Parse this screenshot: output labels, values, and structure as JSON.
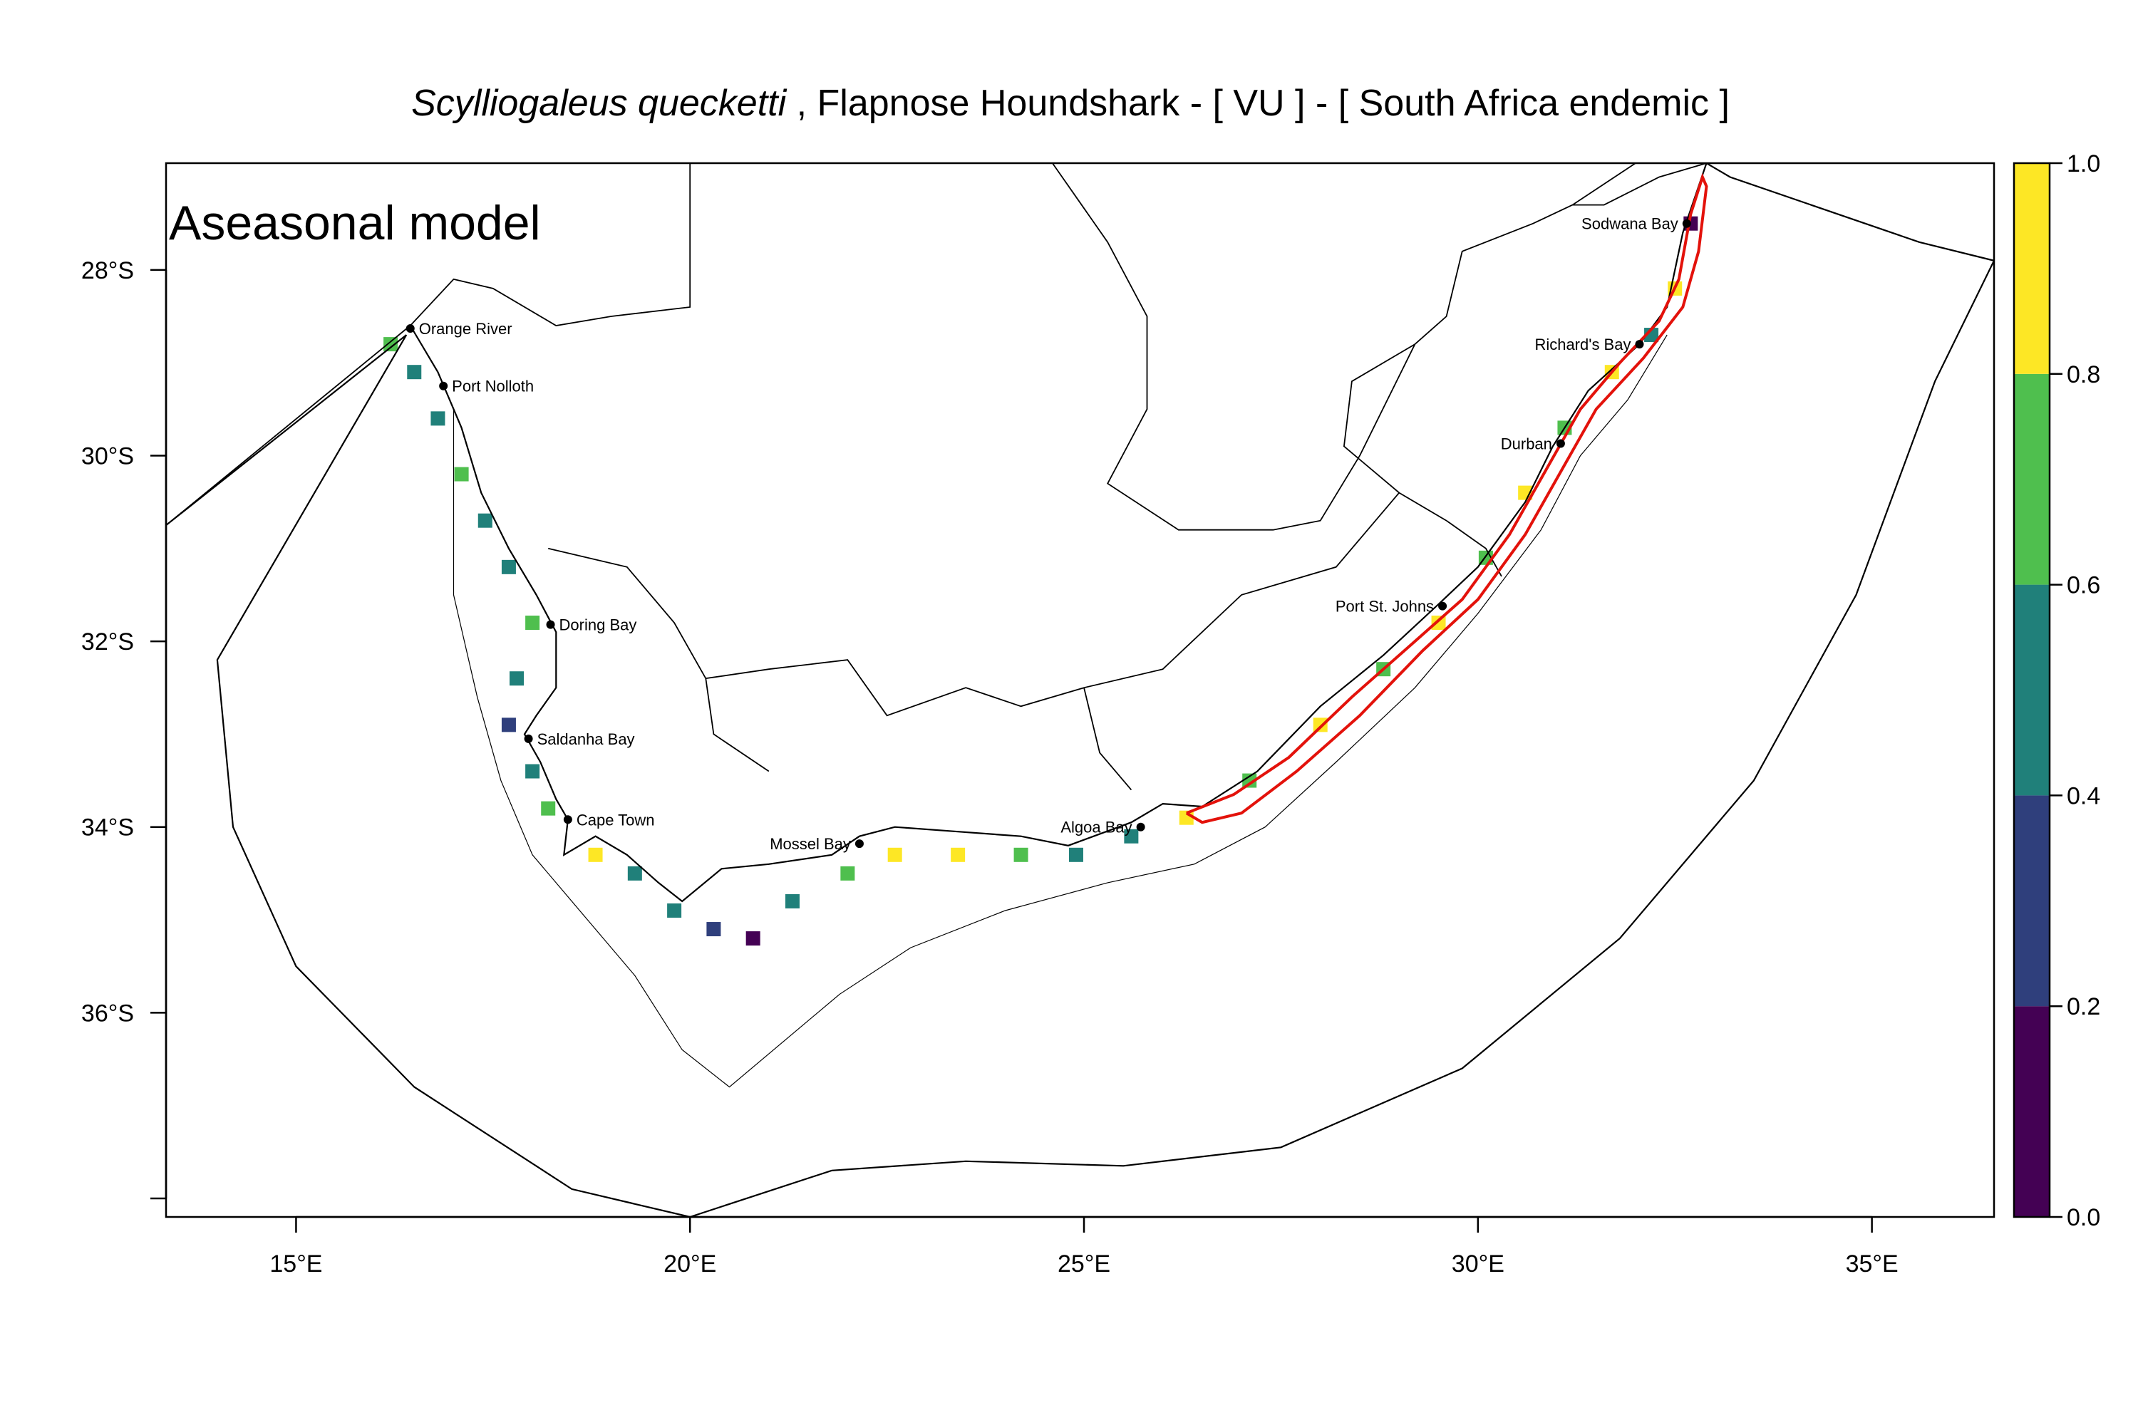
{
  "title": {
    "species": "Scylliogaleus quecketti",
    "rest": " , Flapnose Houndshark  - [ VU ] - [ South Africa endemic ]"
  },
  "model_label": "Aseasonal model",
  "colors": {
    "v0": "#440154",
    "v1": "#2f3f7c",
    "v2": "#20807a",
    "v3": "#4fbf4e",
    "v4": "#fde725",
    "range_outline": "#e3120b",
    "line": "#000000"
  },
  "chart_data": {
    "type": "heatmap",
    "xlabel": "",
    "ylabel": "",
    "x_range": [
      13.35,
      36.55
    ],
    "y_range": [
      -38.2,
      -26.85
    ],
    "x_ticks": [
      15,
      20,
      25,
      30,
      35
    ],
    "x_tick_labels": [
      "15°E",
      "20°E",
      "25°E",
      "30°E",
      "35°E"
    ],
    "y_ticks": [
      -28,
      -30,
      -32,
      -34,
      -36,
      -38
    ],
    "y_tick_labels": [
      "28°S",
      "30°S",
      "32°S",
      "34°S",
      "36°S",
      ""
    ],
    "colorbar": {
      "breaks": [
        0.0,
        0.2,
        0.4,
        0.6,
        0.8,
        1.0
      ],
      "labels": [
        "0.0",
        "0.2",
        "0.4",
        "0.6",
        "0.8",
        "1.0"
      ]
    },
    "places": [
      {
        "name": "Orange River",
        "lon": 16.45,
        "lat": -28.63,
        "side": "right"
      },
      {
        "name": "Port Nolloth",
        "lon": 16.87,
        "lat": -29.25,
        "side": "right"
      },
      {
        "name": "Doring Bay",
        "lon": 18.23,
        "lat": -31.82,
        "side": "right"
      },
      {
        "name": "Saldanha Bay",
        "lon": 17.95,
        "lat": -33.05,
        "side": "right"
      },
      {
        "name": "Cape Town",
        "lon": 18.45,
        "lat": -33.92,
        "side": "right"
      },
      {
        "name": "Mossel Bay",
        "lon": 22.15,
        "lat": -34.18,
        "side": "left"
      },
      {
        "name": "Algoa Bay",
        "lon": 25.72,
        "lat": -34.0,
        "side": "left"
      },
      {
        "name": "Port St. Johns",
        "lon": 29.55,
        "lat": -31.62,
        "side": "left"
      },
      {
        "name": "Durban",
        "lon": 31.05,
        "lat": -29.87,
        "side": "left"
      },
      {
        "name": "Richard's Bay",
        "lon": 32.05,
        "lat": -28.8,
        "side": "left"
      },
      {
        "name": "Sodwana Bay",
        "lon": 32.65,
        "lat": -27.5,
        "side": "left"
      }
    ],
    "coastline": [
      [
        16.45,
        -28.6
      ],
      [
        16.8,
        -29.1
      ],
      [
        17.1,
        -29.7
      ],
      [
        17.35,
        -30.4
      ],
      [
        17.7,
        -31.0
      ],
      [
        18.05,
        -31.5
      ],
      [
        18.3,
        -31.9
      ],
      [
        18.3,
        -32.5
      ],
      [
        18.05,
        -32.8
      ],
      [
        17.9,
        -33.0
      ],
      [
        18.1,
        -33.3
      ],
      [
        18.3,
        -33.7
      ],
      [
        18.45,
        -33.92
      ],
      [
        18.4,
        -34.3
      ],
      [
        18.8,
        -34.1
      ],
      [
        19.2,
        -34.3
      ],
      [
        19.6,
        -34.6
      ],
      [
        19.9,
        -34.8
      ],
      [
        20.4,
        -34.45
      ],
      [
        21.0,
        -34.4
      ],
      [
        21.8,
        -34.3
      ],
      [
        22.15,
        -34.1
      ],
      [
        22.6,
        -34.0
      ],
      [
        23.4,
        -34.05
      ],
      [
        24.2,
        -34.1
      ],
      [
        24.8,
        -34.2
      ],
      [
        25.6,
        -33.95
      ],
      [
        26.0,
        -33.75
      ],
      [
        26.5,
        -33.78
      ],
      [
        27.2,
        -33.4
      ],
      [
        28.0,
        -32.7
      ],
      [
        28.8,
        -32.15
      ],
      [
        29.5,
        -31.6
      ],
      [
        30.0,
        -31.2
      ],
      [
        30.6,
        -30.5
      ],
      [
        30.95,
        -29.9
      ],
      [
        31.4,
        -29.3
      ],
      [
        32.05,
        -28.8
      ],
      [
        32.4,
        -28.4
      ],
      [
        32.6,
        -27.6
      ],
      [
        32.9,
        -26.85
      ]
    ],
    "range_outline": [
      [
        26.3,
        -33.85
      ],
      [
        26.9,
        -33.65
      ],
      [
        27.6,
        -33.25
      ],
      [
        28.4,
        -32.6
      ],
      [
        29.2,
        -32.0
      ],
      [
        29.8,
        -31.55
      ],
      [
        30.4,
        -30.85
      ],
      [
        30.9,
        -30.1
      ],
      [
        31.3,
        -29.5
      ],
      [
        31.8,
        -29.0
      ],
      [
        32.3,
        -28.55
      ],
      [
        32.55,
        -28.1
      ],
      [
        32.7,
        -27.4
      ],
      [
        32.85,
        -27.0
      ],
      [
        32.9,
        -27.1
      ],
      [
        32.8,
        -27.8
      ],
      [
        32.6,
        -28.4
      ],
      [
        32.1,
        -28.95
      ],
      [
        31.5,
        -29.5
      ],
      [
        31.1,
        -30.1
      ],
      [
        30.6,
        -30.85
      ],
      [
        30.0,
        -31.55
      ],
      [
        29.3,
        -32.1
      ],
      [
        28.5,
        -32.8
      ],
      [
        27.7,
        -33.4
      ],
      [
        27.0,
        -33.85
      ],
      [
        26.5,
        -33.95
      ],
      [
        26.3,
        -33.85
      ]
    ],
    "eez_outline": [
      [
        13.35,
        -30.75
      ],
      [
        16.4,
        -28.7
      ],
      [
        14.0,
        -32.2
      ],
      [
        14.2,
        -34.0
      ],
      [
        15.0,
        -35.5
      ],
      [
        16.5,
        -36.8
      ],
      [
        18.5,
        -37.9
      ],
      [
        20.0,
        -38.2
      ],
      [
        21.8,
        -37.7
      ],
      [
        23.5,
        -37.6
      ],
      [
        25.5,
        -37.65
      ],
      [
        27.5,
        -37.45
      ],
      [
        29.8,
        -36.6
      ],
      [
        31.8,
        -35.2
      ],
      [
        33.5,
        -33.5
      ],
      [
        34.8,
        -31.5
      ],
      [
        35.8,
        -29.2
      ],
      [
        36.55,
        -27.9
      ],
      [
        35.6,
        -27.7
      ],
      [
        33.2,
        -27.0
      ],
      [
        32.9,
        -26.85
      ]
    ],
    "shelf_outline": [
      [
        17.0,
        -29.5
      ],
      [
        17.0,
        -31.5
      ],
      [
        17.3,
        -32.6
      ],
      [
        17.6,
        -33.5
      ],
      [
        18.0,
        -34.3
      ],
      [
        18.6,
        -34.9
      ],
      [
        19.3,
        -35.6
      ],
      [
        19.9,
        -36.4
      ],
      [
        20.5,
        -36.8
      ],
      [
        21.2,
        -36.3
      ],
      [
        21.9,
        -35.8
      ],
      [
        22.8,
        -35.3
      ],
      [
        24.0,
        -34.9
      ],
      [
        25.3,
        -34.6
      ],
      [
        26.4,
        -34.4
      ],
      [
        27.3,
        -34.0
      ],
      [
        28.2,
        -33.3
      ],
      [
        29.2,
        -32.5
      ],
      [
        30.0,
        -31.7
      ],
      [
        30.8,
        -30.8
      ],
      [
        31.3,
        -30.0
      ],
      [
        31.9,
        -29.4
      ],
      [
        32.4,
        -28.7
      ]
    ],
    "borders": [
      [
        [
          20.0,
          -26.85
        ],
        [
          20.0,
          -28.4
        ],
        [
          19.0,
          -28.5
        ],
        [
          18.3,
          -28.6
        ],
        [
          17.5,
          -28.2
        ],
        [
          17.0,
          -28.1
        ],
        [
          16.45,
          -28.6
        ]
      ],
      [
        [
          13.35,
          -30.75
        ],
        [
          16.45,
          -28.6
        ]
      ],
      [
        [
          24.6,
          -26.85
        ],
        [
          25.3,
          -27.7
        ],
        [
          25.8,
          -28.5
        ],
        [
          25.8,
          -29.5
        ],
        [
          25.3,
          -30.3
        ],
        [
          26.2,
          -30.8
        ],
        [
          27.4,
          -30.8
        ],
        [
          28.0,
          -30.7
        ],
        [
          28.5,
          -30.0
        ],
        [
          29.2,
          -28.8
        ],
        [
          29.6,
          -28.5
        ],
        [
          29.8,
          -27.8
        ],
        [
          30.7,
          -27.5
        ],
        [
          31.2,
          -27.3
        ],
        [
          32.0,
          -26.85
        ]
      ],
      [
        [
          29.2,
          -28.8
        ],
        [
          28.4,
          -29.2
        ],
        [
          28.3,
          -29.9
        ],
        [
          29.0,
          -30.4
        ],
        [
          29.6,
          -30.7
        ],
        [
          30.1,
          -31.0
        ],
        [
          30.3,
          -31.3
        ]
      ],
      [
        [
          31.2,
          -27.3
        ],
        [
          31.6,
          -27.3
        ],
        [
          32.3,
          -27.0
        ],
        [
          32.9,
          -26.85
        ]
      ],
      [
        [
          18.2,
          -31.0
        ],
        [
          19.2,
          -31.2
        ],
        [
          19.8,
          -31.8
        ],
        [
          20.2,
          -32.4
        ],
        [
          21.0,
          -32.3
        ],
        [
          22.0,
          -32.2
        ],
        [
          22.5,
          -32.8
        ],
        [
          23.5,
          -32.5
        ],
        [
          24.2,
          -32.7
        ],
        [
          25.0,
          -32.5
        ],
        [
          26.0,
          -32.3
        ],
        [
          27.0,
          -31.5
        ],
        [
          28.2,
          -31.2
        ],
        [
          29.0,
          -30.4
        ]
      ],
      [
        [
          20.2,
          -32.4
        ],
        [
          20.3,
          -33.0
        ],
        [
          21.0,
          -33.4
        ]
      ],
      [
        [
          25.0,
          -32.5
        ],
        [
          25.2,
          -33.2
        ],
        [
          25.6,
          -33.6
        ]
      ]
    ],
    "cells": [
      {
        "lon": 16.2,
        "lat": -28.8,
        "v": 3
      },
      {
        "lon": 16.5,
        "lat": -29.1,
        "v": 2
      },
      {
        "lon": 16.8,
        "lat": -29.6,
        "v": 2
      },
      {
        "lon": 17.1,
        "lat": -30.2,
        "v": 3
      },
      {
        "lon": 17.4,
        "lat": -30.7,
        "v": 2
      },
      {
        "lon": 17.7,
        "lat": -31.2,
        "v": 2
      },
      {
        "lon": 18.0,
        "lat": -31.8,
        "v": 3
      },
      {
        "lon": 17.8,
        "lat": -32.4,
        "v": 2
      },
      {
        "lon": 17.7,
        "lat": -32.9,
        "v": 1
      },
      {
        "lon": 18.0,
        "lat": -33.4,
        "v": 2
      },
      {
        "lon": 18.2,
        "lat": -33.8,
        "v": 3
      },
      {
        "lon": 18.8,
        "lat": -34.3,
        "v": 4
      },
      {
        "lon": 19.3,
        "lat": -34.5,
        "v": 2
      },
      {
        "lon": 19.8,
        "lat": -34.9,
        "v": 2
      },
      {
        "lon": 20.3,
        "lat": -35.1,
        "v": 1
      },
      {
        "lon": 20.8,
        "lat": -35.2,
        "v": 0
      },
      {
        "lon": 21.3,
        "lat": -34.8,
        "v": 2
      },
      {
        "lon": 22.0,
        "lat": -34.5,
        "v": 3
      },
      {
        "lon": 22.6,
        "lat": -34.3,
        "v": 4
      },
      {
        "lon": 23.4,
        "lat": -34.3,
        "v": 4
      },
      {
        "lon": 24.2,
        "lat": -34.3,
        "v": 3
      },
      {
        "lon": 24.9,
        "lat": -34.3,
        "v": 2
      },
      {
        "lon": 25.6,
        "lat": -34.1,
        "v": 2
      },
      {
        "lon": 26.3,
        "lat": -33.9,
        "v": 4
      },
      {
        "lon": 27.1,
        "lat": -33.5,
        "v": 3
      },
      {
        "lon": 28.0,
        "lat": -32.9,
        "v": 4
      },
      {
        "lon": 28.8,
        "lat": -32.3,
        "v": 3
      },
      {
        "lon": 29.5,
        "lat": -31.8,
        "v": 4
      },
      {
        "lon": 30.1,
        "lat": -31.1,
        "v": 3
      },
      {
        "lon": 30.6,
        "lat": -30.4,
        "v": 4
      },
      {
        "lon": 31.1,
        "lat": -29.7,
        "v": 3
      },
      {
        "lon": 31.7,
        "lat": -29.1,
        "v": 4
      },
      {
        "lon": 32.2,
        "lat": -28.7,
        "v": 2
      },
      {
        "lon": 32.5,
        "lat": -28.2,
        "v": 4
      },
      {
        "lon": 32.7,
        "lat": -27.5,
        "v": 0
      }
    ]
  }
}
